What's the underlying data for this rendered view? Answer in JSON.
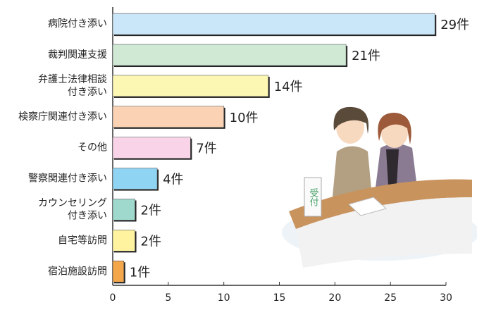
{
  "chart_data": {
    "type": "barh",
    "categories": [
      "病院付き添い",
      "裁判関連支援",
      "弁護士法律相談\n付き添い",
      "検察庁関連付き添い",
      "その他",
      "警察関連付き添い",
      "カウンセリング\n付き添い",
      "自宅等訪問",
      "宿泊施設訪問"
    ],
    "values": [
      29,
      21,
      14,
      10,
      7,
      4,
      2,
      2,
      1
    ],
    "value_labels": [
      "29件",
      "21件",
      "14件",
      "10件",
      "7件",
      "4件",
      "2件",
      "2件",
      "1件"
    ],
    "colors": [
      "#c9e7f8",
      "#cfe9d5",
      "#fdf7b4",
      "#fbd3b4",
      "#f9d4e9",
      "#8fd4f3",
      "#9fd9cd",
      "#fff3a0",
      "#f4a64a"
    ],
    "xlim": [
      0,
      30
    ],
    "xticks": [
      0,
      5,
      10,
      15,
      20,
      25,
      30
    ]
  },
  "sign_text": "受付"
}
